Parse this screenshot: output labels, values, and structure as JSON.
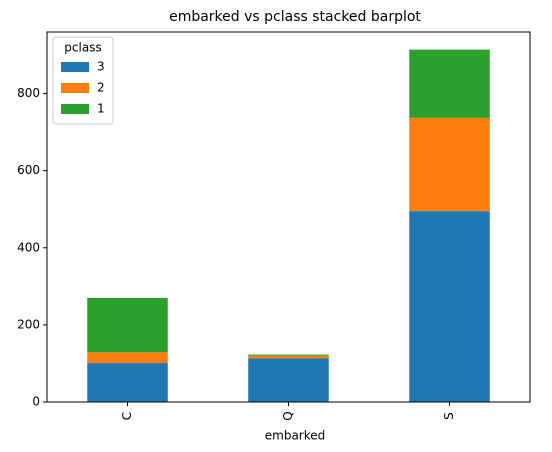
{
  "chart_data": {
    "type": "stacked_bar",
    "title": "embarked vs pclass stacked barplot",
    "x_label": "embarked",
    "categories": [
      "C",
      "Q",
      "S"
    ],
    "series": [
      {
        "name": "3",
        "color": "#1f77b4",
        "values": [
          101,
          113,
          495
        ]
      },
      {
        "name": "2",
        "color": "#ff7f0e",
        "values": [
          28,
          7,
          242
        ]
      },
      {
        "name": "1",
        "color": "#2ca02c",
        "values": [
          141,
          3,
          177
        ]
      }
    ],
    "legend_title": "pclass",
    "legend": "upper left",
    "ylim": [
      0,
      959.7
    ],
    "yticks": [
      0,
      200,
      400,
      600,
      800
    ]
  }
}
